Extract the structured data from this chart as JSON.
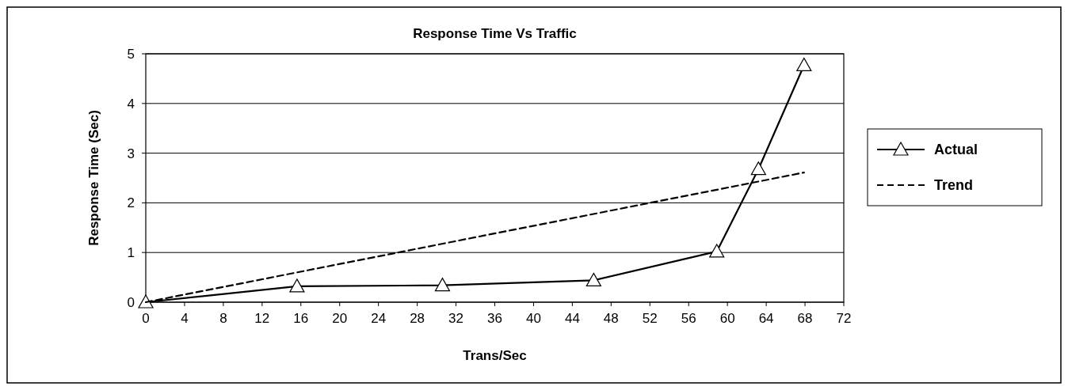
{
  "chart_data": {
    "type": "line",
    "title": "Response Time Vs Traffic",
    "xlabel": "Trans/Sec",
    "ylabel": "Response Time (Sec)",
    "xlim": [
      0,
      72
    ],
    "xticks": [
      0,
      4,
      8,
      12,
      16,
      20,
      24,
      28,
      32,
      36,
      40,
      44,
      48,
      52,
      56,
      60,
      64,
      68,
      72
    ],
    "ylim": [
      0,
      5
    ],
    "yticks": [
      0,
      1,
      2,
      3,
      4,
      5
    ],
    "grid": "y",
    "legend": "right",
    "series": [
      {
        "name": "Actual",
        "color": "#000000",
        "x": [
          0,
          15.6,
          30.6,
          46.2,
          58.9,
          63.2,
          67.9
        ],
        "values": [
          0,
          0.32,
          0.34,
          0.44,
          1.02,
          2.68,
          4.77
        ],
        "marker": "triangle",
        "line_style": "solid"
      },
      {
        "name": "Trend",
        "color": "#000000",
        "x": [
          0,
          67.9
        ],
        "values": [
          0,
          2.61
        ],
        "marker": "none",
        "line_style": "dashed"
      }
    ]
  }
}
